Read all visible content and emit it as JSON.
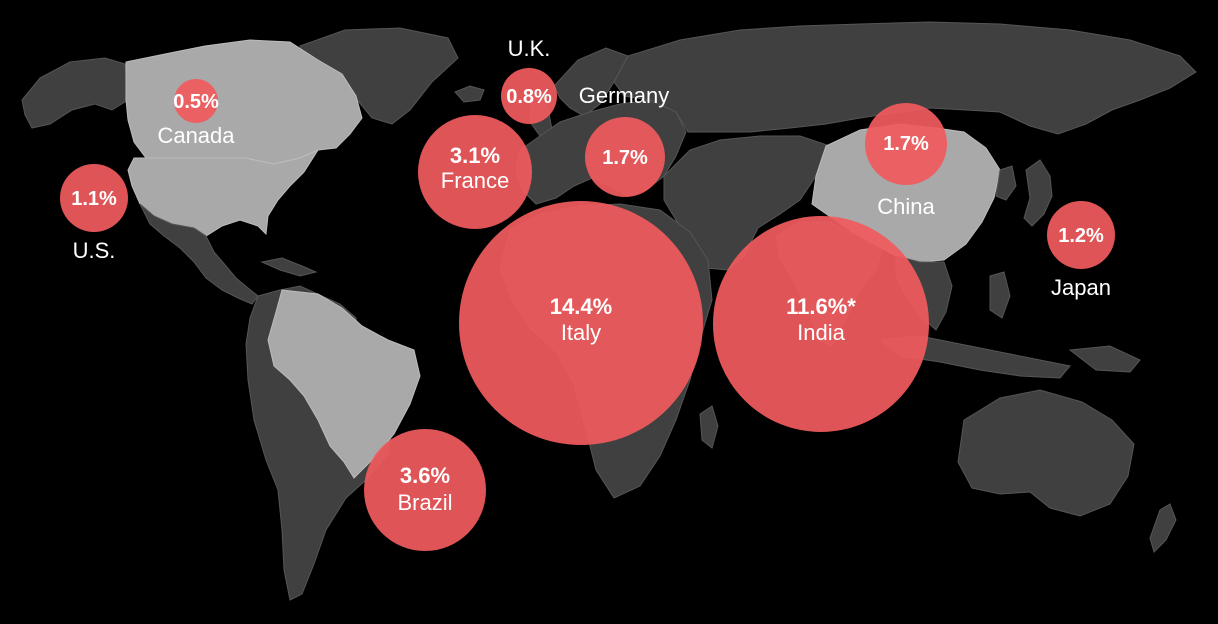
{
  "colors": {
    "background": "#000000",
    "land_dark": "#404040",
    "land_highlight": "#a9a9a9",
    "bubble": "#f05a5c",
    "text": "#ffffff"
  },
  "countries": [
    {
      "id": "us",
      "name": "U.S.",
      "value": "1.1%",
      "pct": 1.1
    },
    {
      "id": "canada",
      "name": "Canada",
      "value": "0.5%",
      "pct": 0.5
    },
    {
      "id": "uk",
      "name": "U.K.",
      "value": "0.8%",
      "pct": 0.8
    },
    {
      "id": "germany",
      "name": "Germany",
      "value": "1.7%",
      "pct": 1.7
    },
    {
      "id": "france",
      "name": "France",
      "value": "3.1%",
      "pct": 3.1
    },
    {
      "id": "italy",
      "name": "Italy",
      "value": "14.4%",
      "pct": 14.4
    },
    {
      "id": "india",
      "name": "India",
      "value": "11.6%*",
      "pct": 11.6
    },
    {
      "id": "china",
      "name": "China",
      "value": "1.7%",
      "pct": 1.7
    },
    {
      "id": "japan",
      "name": "Japan",
      "value": "1.2%",
      "pct": 1.2
    },
    {
      "id": "brazil",
      "name": "Brazil",
      "value": "3.6%",
      "pct": 3.6
    }
  ]
}
